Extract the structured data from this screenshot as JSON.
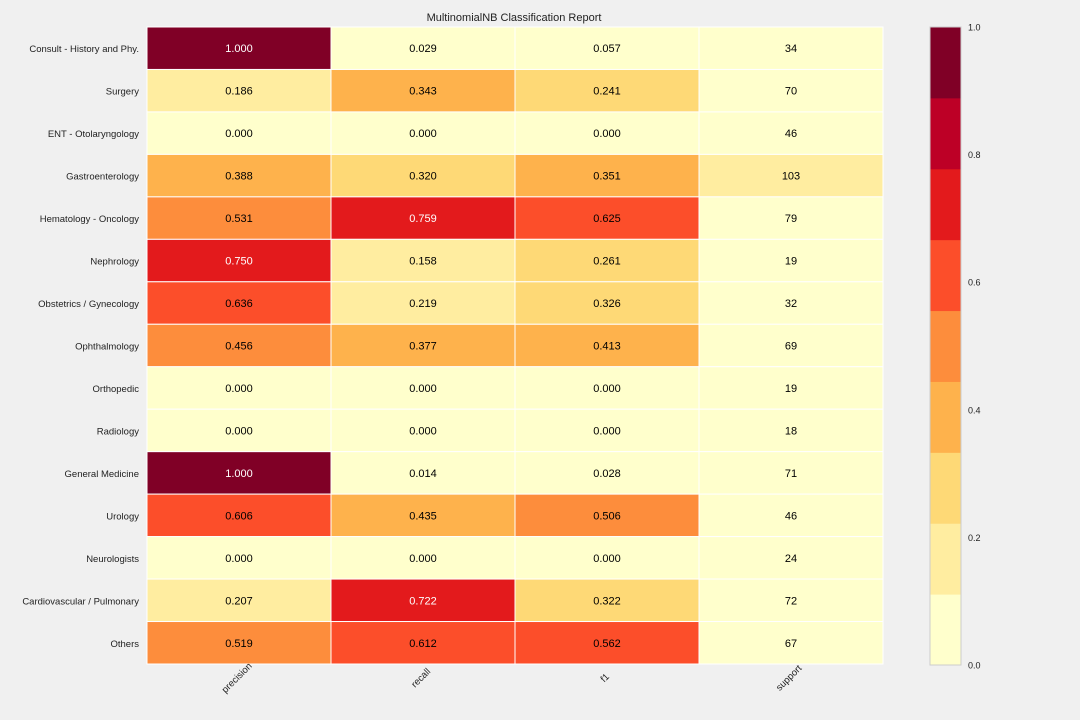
{
  "chart_data": {
    "type": "heatmap",
    "title": "MultinomialNB Classification Report",
    "rows": [
      "Consult - History and Phy.",
      "Surgery",
      "ENT - Otolaryngology",
      "Gastroenterology",
      "Hematology - Oncology",
      "Nephrology",
      "Obstetrics / Gynecology",
      "Ophthalmology",
      "Orthopedic",
      "Radiology",
      "General Medicine",
      "Urology",
      "Neurologists",
      "Cardiovascular / Pulmonary",
      "Others"
    ],
    "columns": [
      "precision",
      "recall",
      "f1",
      "support"
    ],
    "values": [
      [
        1.0,
        0.029,
        0.057,
        34
      ],
      [
        0.186,
        0.343,
        0.241,
        70
      ],
      [
        0.0,
        0.0,
        0.0,
        46
      ],
      [
        0.388,
        0.32,
        0.351,
        103
      ],
      [
        0.531,
        0.759,
        0.625,
        79
      ],
      [
        0.75,
        0.158,
        0.261,
        19
      ],
      [
        0.636,
        0.219,
        0.326,
        32
      ],
      [
        0.456,
        0.377,
        0.413,
        69
      ],
      [
        0.0,
        0.0,
        0.0,
        19
      ],
      [
        0.0,
        0.0,
        0.0,
        18
      ],
      [
        1.0,
        0.014,
        0.028,
        71
      ],
      [
        0.606,
        0.435,
        0.506,
        46
      ],
      [
        0.0,
        0.0,
        0.0,
        24
      ],
      [
        0.207,
        0.722,
        0.322,
        72
      ],
      [
        0.519,
        0.612,
        0.562,
        67
      ]
    ],
    "support_color_bins": {
      "103": 1,
      "default": 0
    },
    "colorbar": {
      "range": [
        0.0,
        1.0
      ],
      "ticks": [
        "0.0",
        "0.2",
        "0.4",
        "0.6",
        "0.8",
        "1.0"
      ],
      "colors": [
        "#ffffcc",
        "#ffeda0",
        "#fed976",
        "#feb24c",
        "#fd8d3c",
        "#fc4e2a",
        "#e31a1c",
        "#bd0026",
        "#800026"
      ]
    },
    "grid": true,
    "cell_border_color": "#ffffff",
    "light_text_color": "#ffffff",
    "dark_text_color": "#000000"
  }
}
